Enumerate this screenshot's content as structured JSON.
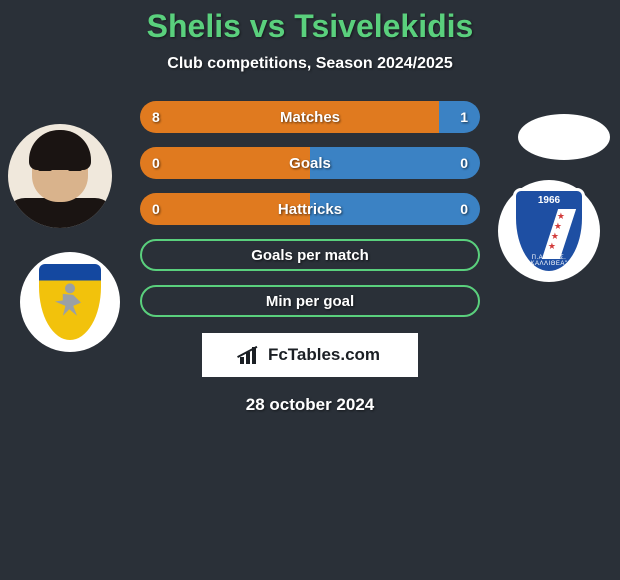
{
  "title": "Shelis vs Tsivelekidis",
  "subtitle": "Club competitions, Season 2024/2025",
  "date": "28 october 2024",
  "brand": "FcTables.com",
  "colors": {
    "background": "#2a3038",
    "accent_green": "#5ad07d",
    "left_fill": "#e07a1f",
    "right_fill": "#3b82c4",
    "text": "#ffffff"
  },
  "left_club": {
    "shield_top": "#1448a0",
    "shield_body": "#f2c20c"
  },
  "right_club": {
    "shield": "#1e4fa3",
    "year": "1966",
    "text_bottom": "Π.Α.Ε \"Γ.Σ. ΚΑΛΛΙΘΕΑ\""
  },
  "rows": [
    {
      "label": "Matches",
      "left": "8",
      "right": "1",
      "left_pct": 88,
      "right_pct": 12,
      "filled": true
    },
    {
      "label": "Goals",
      "left": "0",
      "right": "0",
      "left_pct": 50,
      "right_pct": 50,
      "filled": true
    },
    {
      "label": "Hattricks",
      "left": "0",
      "right": "0",
      "left_pct": 50,
      "right_pct": 50,
      "filled": true
    },
    {
      "label": "Goals per match",
      "filled": false
    },
    {
      "label": "Min per goal",
      "filled": false
    }
  ]
}
